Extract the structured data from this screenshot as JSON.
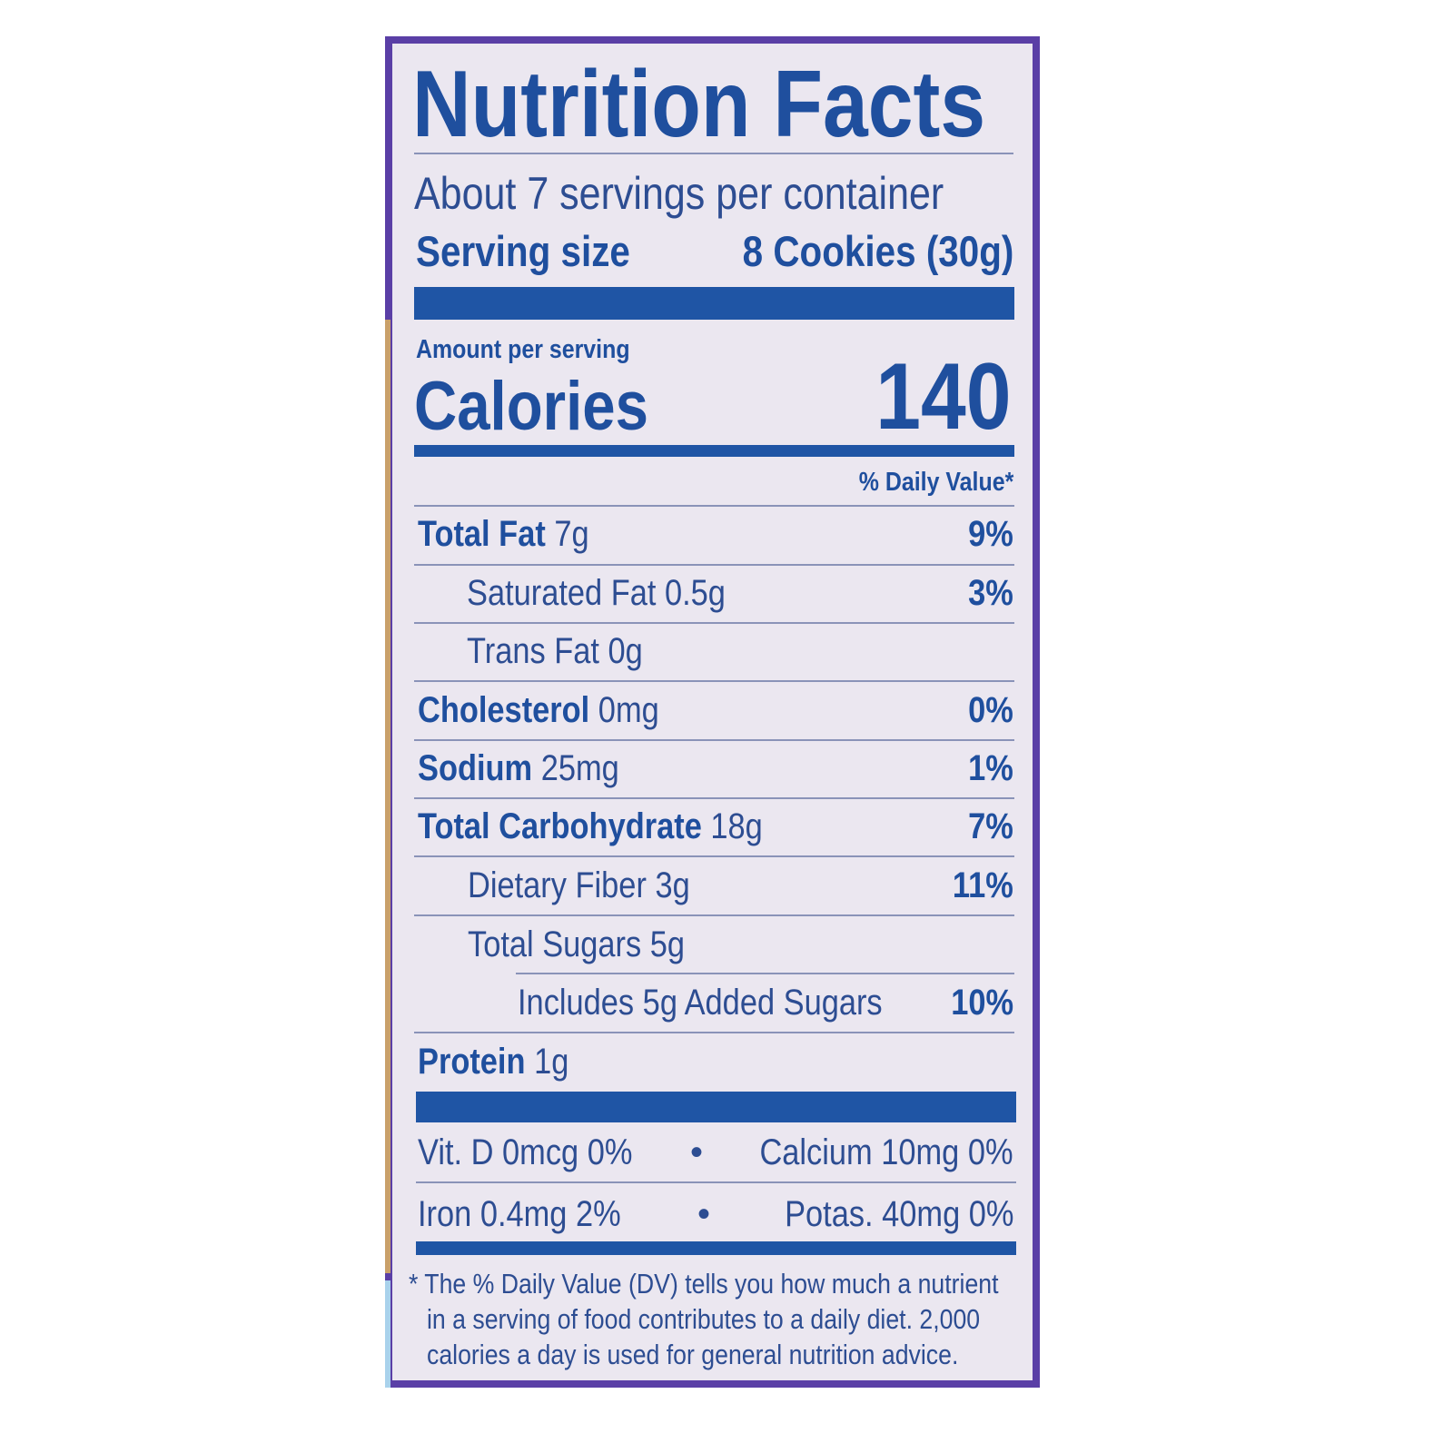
{
  "title": "Nutrition Facts",
  "servings_per_container": "About 7 servings per container",
  "serving_size": {
    "label": "Serving size",
    "value": "8 Cookies (30g)"
  },
  "amount_per_serving": "Amount per serving",
  "calories": {
    "label": "Calories",
    "value": "140"
  },
  "dv_header": "% Daily Value*",
  "nutrients": [
    {
      "name": "Total Fat",
      "amount": "7g",
      "dv": "9%"
    },
    {
      "name": "Saturated Fat 0.5g",
      "amount": "",
      "dv": "3%"
    },
    {
      "name": "Trans Fat 0g",
      "amount": "",
      "dv": ""
    },
    {
      "name": "Cholesterol",
      "amount": "0mg",
      "dv": "0%"
    },
    {
      "name": "Sodium",
      "amount": "25mg",
      "dv": "1%"
    },
    {
      "name": "Total Carbohydrate",
      "amount": "18g",
      "dv": "7%"
    },
    {
      "name": "Dietary Fiber 3g",
      "amount": "",
      "dv": "11%"
    },
    {
      "name": "Total Sugars 5g",
      "amount": "",
      "dv": ""
    },
    {
      "name": "Includes 5g Added Sugars",
      "amount": "",
      "dv": "10%"
    },
    {
      "name": "Protein",
      "amount": "1g",
      "dv": ""
    }
  ],
  "vitamins": [
    {
      "left": "Vit. D 0mcg 0%",
      "sep": "•",
      "right": "Calcium 10mg 0%"
    },
    {
      "left": "Iron 0.4mg 2%",
      "sep": "•",
      "right": "Potas. 40mg 0%"
    }
  ],
  "footnote": [
    "* The % Daily Value (DV) tells you how much a nutrient",
    "in a serving of food contributes to a daily diet. 2,000",
    "calories a day is used for general nutrition advice."
  ],
  "colors": {
    "text": "#1f4f9e",
    "border": "#5a3fa6",
    "background": "#ebe7f0"
  }
}
